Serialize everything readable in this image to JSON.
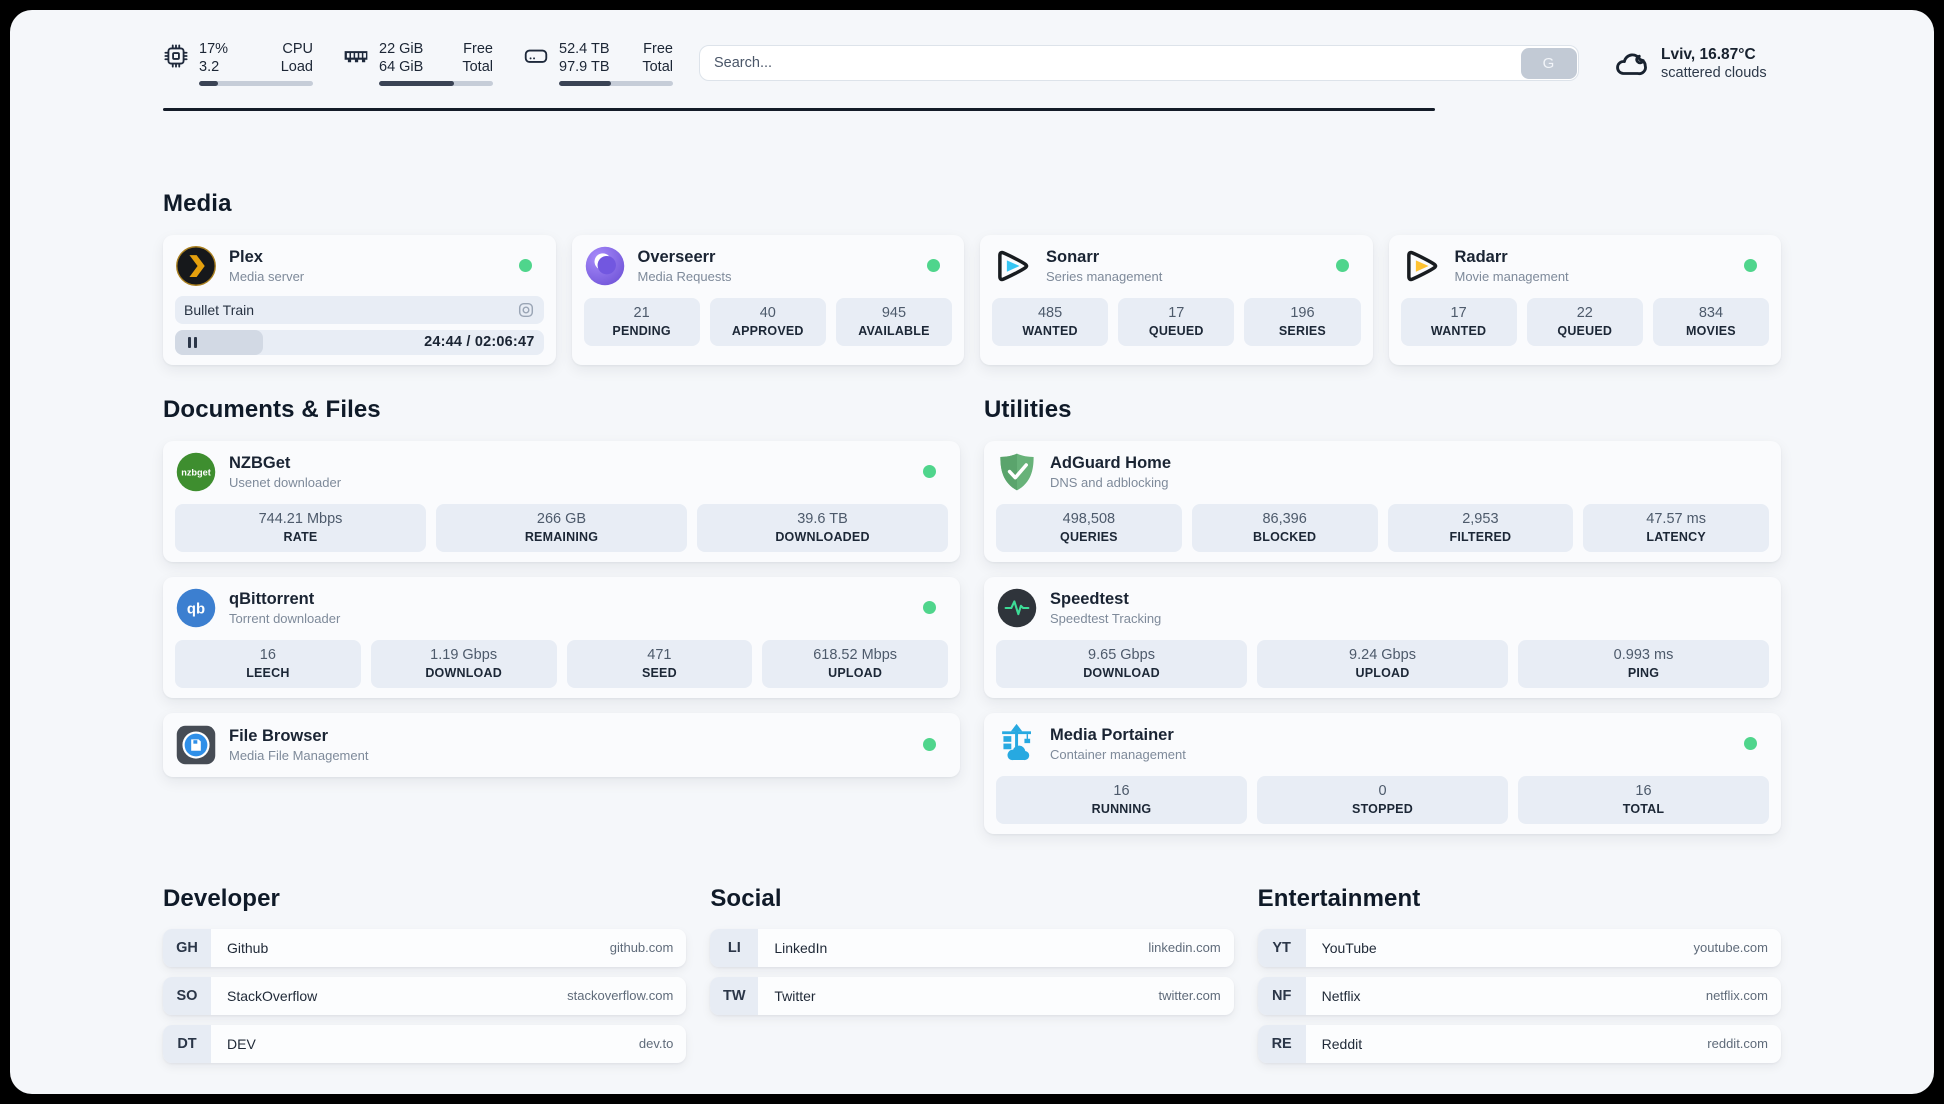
{
  "header": {
    "cpu": {
      "value1": "17%",
      "label1": "CPU",
      "value2": "3.2",
      "label2": "Load",
      "progress_pct": 17
    },
    "ram": {
      "value1": "22 GiB",
      "label1": "Free",
      "value2": "64 GiB",
      "label2": "Total",
      "progress_pct": 66
    },
    "disk": {
      "value1": "52.4 TB",
      "label1": "Free",
      "value2": "97.9 TB",
      "label2": "Total",
      "progress_pct": 46
    },
    "search": {
      "placeholder": "Search...",
      "button_label": "G"
    },
    "weather": {
      "location": "Lviv, 16.87°C",
      "condition": "scattered clouds"
    }
  },
  "media": {
    "title": "Media",
    "plex": {
      "name": "Plex",
      "desc": "Media server",
      "now_playing": "Bullet Train",
      "time": "24:44 / 02:06:47"
    },
    "overseerr": {
      "name": "Overseerr",
      "desc": "Media Requests",
      "stats": [
        {
          "value": "21",
          "label": "PENDING"
        },
        {
          "value": "40",
          "label": "APPROVED"
        },
        {
          "value": "945",
          "label": "AVAILABLE"
        }
      ]
    },
    "sonarr": {
      "name": "Sonarr",
      "desc": "Series management",
      "stats": [
        {
          "value": "485",
          "label": "WANTED"
        },
        {
          "value": "17",
          "label": "QUEUED"
        },
        {
          "value": "196",
          "label": "SERIES"
        }
      ]
    },
    "radarr": {
      "name": "Radarr",
      "desc": "Movie management",
      "stats": [
        {
          "value": "17",
          "label": "WANTED"
        },
        {
          "value": "22",
          "label": "QUEUED"
        },
        {
          "value": "834",
          "label": "MOVIES"
        }
      ]
    }
  },
  "documents": {
    "title": "Documents & Files",
    "nzbget": {
      "name": "NZBGet",
      "desc": "Usenet downloader",
      "stats": [
        {
          "value": "744.21 Mbps",
          "label": "RATE"
        },
        {
          "value": "266 GB",
          "label": "REMAINING"
        },
        {
          "value": "39.6 TB",
          "label": "DOWNLOADED"
        }
      ]
    },
    "qbittorrent": {
      "name": "qBittorrent",
      "desc": "Torrent downloader",
      "stats": [
        {
          "value": "16",
          "label": "LEECH"
        },
        {
          "value": "1.19 Gbps",
          "label": "DOWNLOAD"
        },
        {
          "value": "471",
          "label": "SEED"
        },
        {
          "value": "618.52 Mbps",
          "label": "UPLOAD"
        }
      ]
    },
    "filebrowser": {
      "name": "File Browser",
      "desc": "Media File Management"
    }
  },
  "utilities": {
    "title": "Utilities",
    "adguard": {
      "name": "AdGuard Home",
      "desc": "DNS and adblocking",
      "stats": [
        {
          "value": "498,508",
          "label": "QUERIES"
        },
        {
          "value": "86,396",
          "label": "BLOCKED"
        },
        {
          "value": "2,953",
          "label": "FILTERED"
        },
        {
          "value": "47.57 ms",
          "label": "LATENCY"
        }
      ]
    },
    "speedtest": {
      "name": "Speedtest",
      "desc": "Speedtest Tracking",
      "stats": [
        {
          "value": "9.65 Gbps",
          "label": "DOWNLOAD"
        },
        {
          "value": "9.24 Gbps",
          "label": "UPLOAD"
        },
        {
          "value": "0.993 ms",
          "label": "PING"
        }
      ]
    },
    "portainer": {
      "name": "Media Portainer",
      "desc": "Container management",
      "stats": [
        {
          "value": "16",
          "label": "RUNNING"
        },
        {
          "value": "0",
          "label": "STOPPED"
        },
        {
          "value": "16",
          "label": "TOTAL"
        }
      ]
    }
  },
  "links": {
    "developer": {
      "title": "Developer",
      "items": [
        {
          "abbr": "GH",
          "name": "Github",
          "url": "github.com"
        },
        {
          "abbr": "SO",
          "name": "StackOverflow",
          "url": "stackoverflow.com"
        },
        {
          "abbr": "DT",
          "name": "DEV",
          "url": "dev.to"
        }
      ]
    },
    "social": {
      "title": "Social",
      "items": [
        {
          "abbr": "LI",
          "name": "LinkedIn",
          "url": "linkedin.com"
        },
        {
          "abbr": "TW",
          "name": "Twitter",
          "url": "twitter.com"
        }
      ]
    },
    "entertainment": {
      "title": "Entertainment",
      "items": [
        {
          "abbr": "YT",
          "name": "YouTube",
          "url": "youtube.com"
        },
        {
          "abbr": "NF",
          "name": "Netflix",
          "url": "netflix.com"
        },
        {
          "abbr": "RE",
          "name": "Reddit",
          "url": "reddit.com"
        }
      ]
    }
  },
  "colors": {
    "online_dot": "#4fd58c",
    "progress_fill": "#3a4354",
    "accent_dark": "#141c28"
  }
}
